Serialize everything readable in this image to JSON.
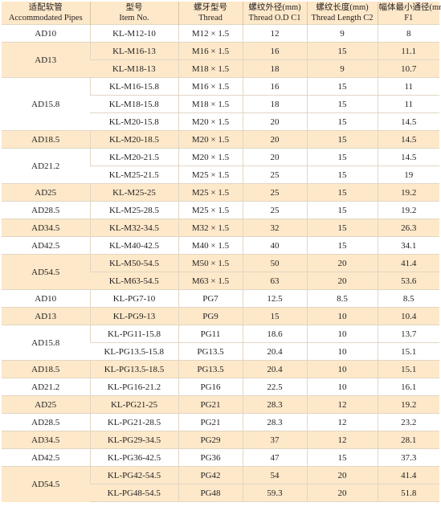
{
  "headers": [
    {
      "zh": "适配软管",
      "en": "Accommodated Pipes"
    },
    {
      "zh": "型号",
      "en": "Item No."
    },
    {
      "zh": "螺牙型号",
      "en": "Thread"
    },
    {
      "zh": "螺纹外径(mm)",
      "en": "Thread O.D C1"
    },
    {
      "zh": "螺纹长度(mm)",
      "en": "Thread Length C2"
    },
    {
      "zh": "幅体最小通径(mm)",
      "en": "F1"
    }
  ],
  "groups": [
    {
      "pipe": "AD10",
      "tint": false,
      "rows": [
        [
          "KL-M12-10",
          "M12 × 1.5",
          "12",
          "9",
          "8"
        ]
      ]
    },
    {
      "pipe": "AD13",
      "tint": true,
      "rows": [
        [
          "KL-M16-13",
          "M16 × 1.5",
          "16",
          "15",
          "11.1"
        ],
        [
          "KL-M18-13",
          "M18 × 1.5",
          "18",
          "9",
          "10.7"
        ]
      ]
    },
    {
      "pipe": "AD15.8",
      "tint": false,
      "rows": [
        [
          "KL-M16-15.8",
          "M16 × 1.5",
          "16",
          "15",
          "11"
        ],
        [
          "KL-M18-15.8",
          "M18 × 1.5",
          "18",
          "15",
          "11"
        ],
        [
          "KL-M20-15.8",
          "M20 × 1.5",
          "20",
          "15",
          "14.5"
        ]
      ]
    },
    {
      "pipe": "AD18.5",
      "tint": true,
      "rows": [
        [
          "KL-M20-18.5",
          "M20 × 1.5",
          "20",
          "15",
          "14.5"
        ]
      ]
    },
    {
      "pipe": "AD21.2",
      "tint": false,
      "rows": [
        [
          "KL-M20-21.5",
          "M20 × 1.5",
          "20",
          "15",
          "14.5"
        ],
        [
          "KL-M25-21.5",
          "M25 × 1.5",
          "25",
          "15",
          "19"
        ]
      ]
    },
    {
      "pipe": "AD25",
      "tint": true,
      "rows": [
        [
          "KL-M25-25",
          "M25 × 1.5",
          "25",
          "15",
          "19.2"
        ]
      ]
    },
    {
      "pipe": "AD28.5",
      "tint": false,
      "rows": [
        [
          "KL-M25-28.5",
          "M25 × 1.5",
          "25",
          "15",
          "19.2"
        ]
      ]
    },
    {
      "pipe": "AD34.5",
      "tint": true,
      "rows": [
        [
          "KL-M32-34.5",
          "M32 × 1.5",
          "32",
          "15",
          "26.3"
        ]
      ]
    },
    {
      "pipe": "AD42.5",
      "tint": false,
      "rows": [
        [
          "KL-M40-42.5",
          "M40 × 1.5",
          "40",
          "15",
          "34.1"
        ]
      ]
    },
    {
      "pipe": "AD54.5",
      "tint": true,
      "rows": [
        [
          "KL-M50-54.5",
          "M50 × 1.5",
          "50",
          "20",
          "41.4"
        ],
        [
          "KL-M63-54.5",
          "M63 × 1.5",
          "63",
          "20",
          "53.6"
        ]
      ]
    },
    {
      "pipe": "AD10",
      "tint": false,
      "rows": [
        [
          "KL-PG7-10",
          "PG7",
          "12.5",
          "8.5",
          "8.5"
        ]
      ]
    },
    {
      "pipe": "AD13",
      "tint": true,
      "rows": [
        [
          "KL-PG9-13",
          "PG9",
          "15",
          "10",
          "10.4"
        ]
      ]
    },
    {
      "pipe": "AD15.8",
      "tint": false,
      "rows": [
        [
          "KL-PG11-15.8",
          "PG11",
          "18.6",
          "10",
          "13.7"
        ],
        [
          "KL-PG13.5-15.8",
          "PG13.5",
          "20.4",
          "10",
          "15.1"
        ]
      ]
    },
    {
      "pipe": "AD18.5",
      "tint": true,
      "rows": [
        [
          "KL-PG13.5-18.5",
          "PG13.5",
          "20.4",
          "10",
          "15.1"
        ]
      ]
    },
    {
      "pipe": "AD21.2",
      "tint": false,
      "rows": [
        [
          "KL-PG16-21.2",
          "PG16",
          "22.5",
          "10",
          "16.1"
        ]
      ]
    },
    {
      "pipe": "AD25",
      "tint": true,
      "rows": [
        [
          "KL-PG21-25",
          "PG21",
          "28.3",
          "12",
          "19.2"
        ]
      ]
    },
    {
      "pipe": "AD28.5",
      "tint": false,
      "rows": [
        [
          "KL-PG21-28.5",
          "PG21",
          "28.3",
          "12",
          "23.2"
        ]
      ]
    },
    {
      "pipe": "AD34.5",
      "tint": true,
      "rows": [
        [
          "KL-PG29-34.5",
          "PG29",
          "37",
          "12",
          "28.1"
        ]
      ]
    },
    {
      "pipe": "AD42.5",
      "tint": false,
      "rows": [
        [
          "KL-PG36-42.5",
          "PG36",
          "47",
          "15",
          "37.3"
        ]
      ]
    },
    {
      "pipe": "AD54.5",
      "tint": true,
      "rows": [
        [
          "KL-PG42-54.5",
          "PG42",
          "54",
          "20",
          "41.4"
        ],
        [
          "KL-PG48-54.5",
          "PG48",
          "59.3",
          "20",
          "51.8"
        ]
      ]
    }
  ]
}
